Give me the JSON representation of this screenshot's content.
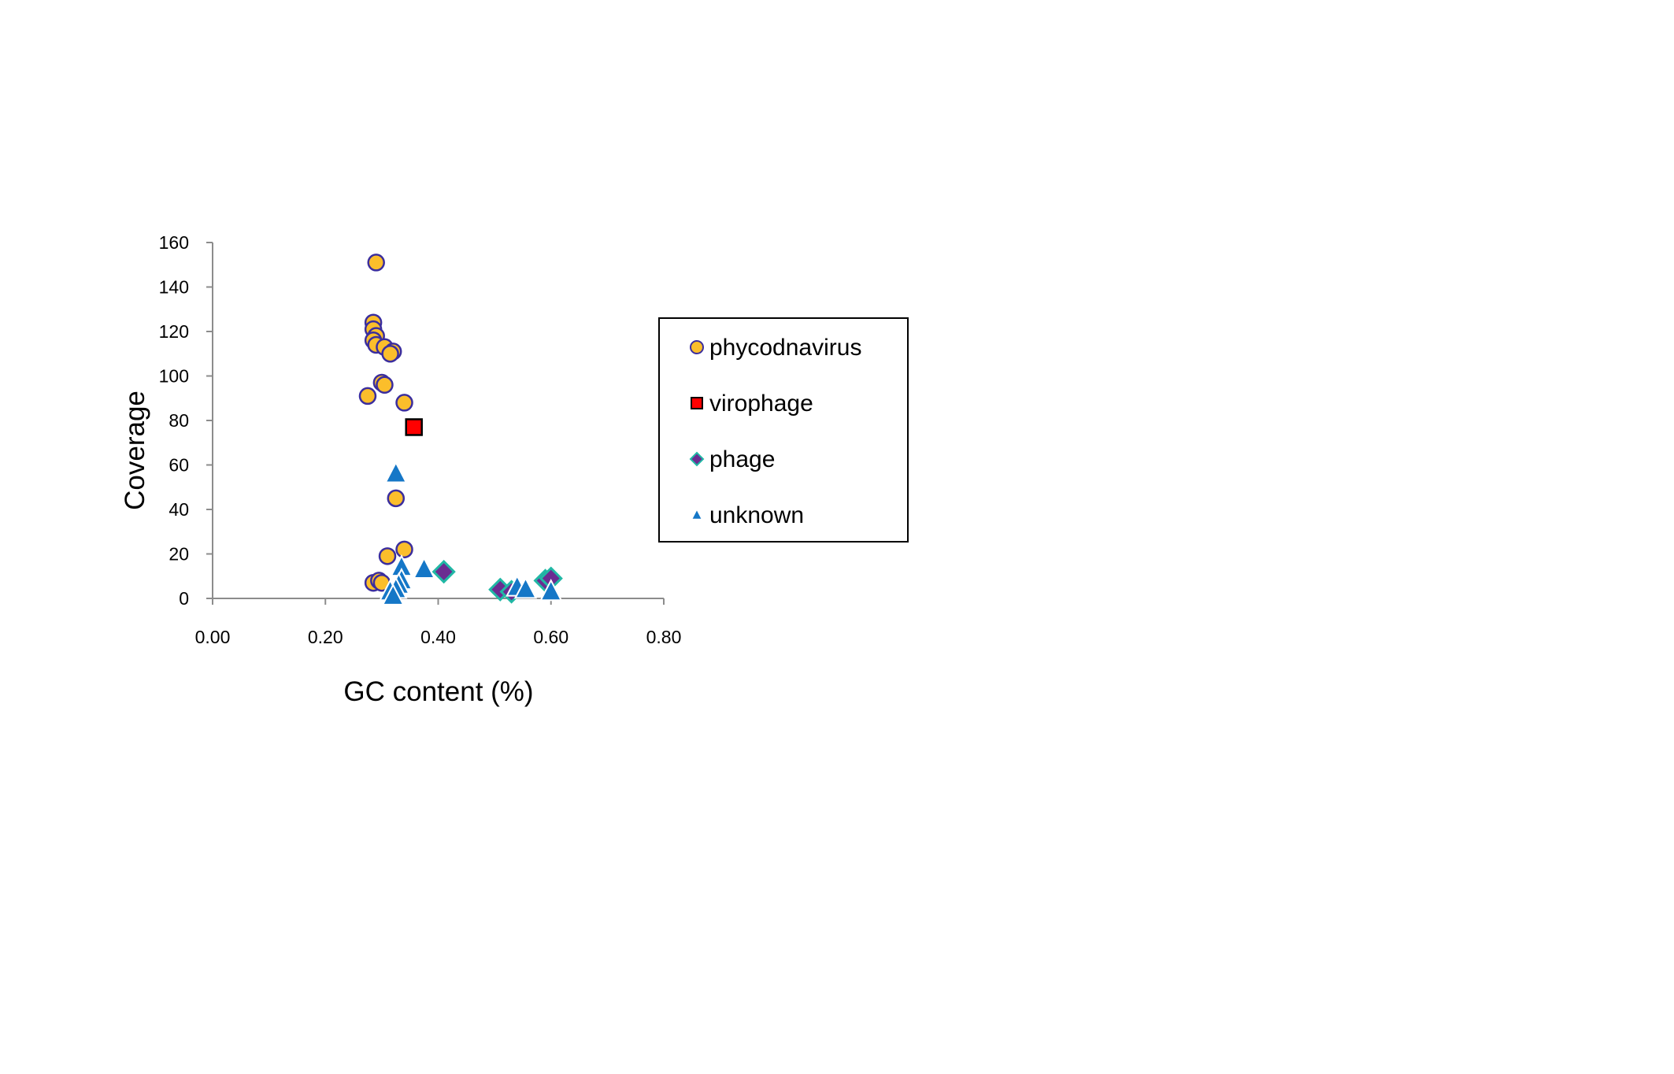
{
  "chart_data": {
    "type": "scatter",
    "xlabel": "GC content (%)",
    "ylabel": "Coverage",
    "xlim": [
      0,
      0.8
    ],
    "ylim": [
      0,
      160
    ],
    "xticks": [
      "0.00",
      "0.20",
      "0.40",
      "0.60",
      "0.80"
    ],
    "yticks": [
      "0",
      "20",
      "40",
      "60",
      "80",
      "100",
      "120",
      "140",
      "160"
    ],
    "grid": false,
    "legend_position": "right",
    "series": [
      {
        "name": "phycodnavirus",
        "marker": "circle",
        "fill": "#FBBE2B",
        "stroke": "#3B2E9E",
        "points": [
          [
            0.29,
            151
          ],
          [
            0.285,
            124
          ],
          [
            0.285,
            121
          ],
          [
            0.29,
            118
          ],
          [
            0.285,
            116
          ],
          [
            0.29,
            114
          ],
          [
            0.305,
            113
          ],
          [
            0.32,
            111
          ],
          [
            0.315,
            110
          ],
          [
            0.3,
            97
          ],
          [
            0.305,
            96
          ],
          [
            0.275,
            91
          ],
          [
            0.34,
            88
          ],
          [
            0.325,
            45
          ],
          [
            0.34,
            22
          ],
          [
            0.31,
            19
          ],
          [
            0.285,
            7
          ],
          [
            0.295,
            8
          ],
          [
            0.3,
            7
          ]
        ]
      },
      {
        "name": "virophage",
        "marker": "square",
        "fill": "#FF0000",
        "stroke": "#000000",
        "points": [
          [
            0.357,
            77
          ]
        ]
      },
      {
        "name": "phage",
        "marker": "diamond",
        "fill": "#6B2C91",
        "stroke": "#21B8A5",
        "points": [
          [
            0.41,
            12
          ],
          [
            0.51,
            4
          ],
          [
            0.59,
            8
          ],
          [
            0.6,
            9
          ],
          [
            0.53,
            3
          ]
        ]
      },
      {
        "name": "unknown",
        "marker": "triangle",
        "fill": "#1577C7",
        "stroke": "#FFFFFF",
        "points": [
          [
            0.325,
            56
          ],
          [
            0.335,
            14
          ],
          [
            0.375,
            13
          ],
          [
            0.335,
            8
          ],
          [
            0.33,
            6
          ],
          [
            0.325,
            4
          ],
          [
            0.315,
            3
          ],
          [
            0.32,
            1
          ],
          [
            0.54,
            5
          ],
          [
            0.555,
            4
          ],
          [
            0.6,
            3
          ]
        ]
      }
    ]
  }
}
